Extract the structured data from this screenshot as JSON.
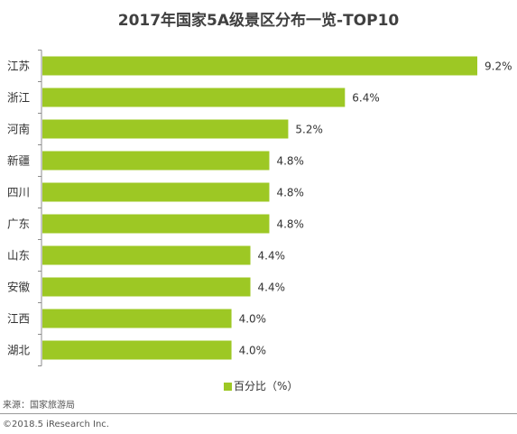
{
  "page": {
    "source": "来源：国家旅游局",
    "copyright": "©2018.5 iResearch Inc."
  },
  "chart_data": {
    "type": "bar",
    "orientation": "horizontal",
    "title": "2017年国家5A级景区分布一览-TOP10",
    "categories": [
      "江苏",
      "浙江",
      "河南",
      "新疆",
      "四川",
      "广东",
      "山东",
      "安徽",
      "江西",
      "湖北"
    ],
    "series": [
      {
        "name": "百分比（%）",
        "values": [
          9.2,
          6.4,
          5.2,
          4.8,
          4.8,
          4.8,
          4.4,
          4.4,
          4.0,
          4.0
        ],
        "labels": [
          "9.2%",
          "6.4%",
          "5.2%",
          "4.8%",
          "4.8%",
          "4.8%",
          "4.4%",
          "4.4%",
          "4.0%",
          "4.0%"
        ]
      }
    ],
    "xlim": [
      0,
      9.2
    ],
    "grid": false,
    "legend": "bottom",
    "colors": {
      "bar": "#9dc824",
      "axis": "#8c8c8c",
      "text": "#333333"
    }
  }
}
